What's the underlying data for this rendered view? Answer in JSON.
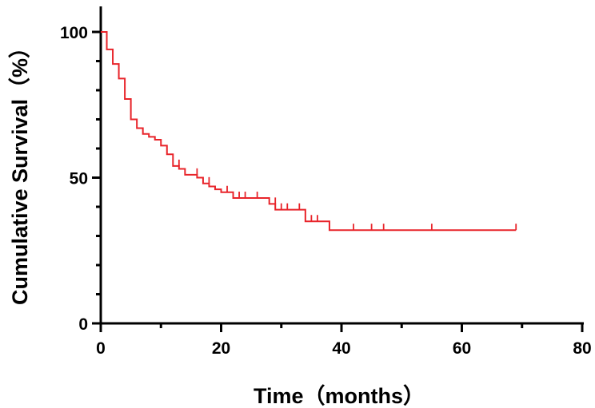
{
  "chart_data": {
    "type": "line",
    "step": true,
    "xlabel": "Time（months）",
    "ylabel": "Cumulative Survival（%）",
    "xlim": [
      0,
      80
    ],
    "ylim": [
      0,
      100
    ],
    "xticks": [
      "0",
      "20",
      "40",
      "60",
      "80"
    ],
    "yticks": [
      "0",
      "50",
      "100"
    ],
    "grid": false,
    "legend": "none",
    "line_color": "#e8242a",
    "series": [
      {
        "x": [
          0,
          1,
          2,
          3,
          4,
          5,
          6,
          7,
          8,
          9,
          10,
          11,
          12,
          13,
          14,
          15,
          16,
          17,
          18,
          19,
          20,
          22,
          28,
          29,
          34,
          38,
          69
        ],
        "y": [
          100,
          94,
          89,
          84,
          77,
          70,
          67,
          65,
          64,
          63,
          61,
          58,
          54,
          53,
          51,
          51,
          50,
          48,
          47,
          46,
          45,
          43,
          41,
          39,
          35,
          32,
          32
        ]
      }
    ],
    "censored": {
      "x": [
        13,
        16,
        18,
        21,
        23,
        24,
        26,
        29,
        30,
        31,
        33,
        35,
        36,
        42,
        45,
        47,
        55,
        69
      ],
      "y": [
        54,
        51,
        48,
        45,
        43,
        43,
        43,
        41,
        39,
        39,
        39,
        35,
        35,
        32,
        32,
        32,
        32,
        32
      ]
    }
  }
}
